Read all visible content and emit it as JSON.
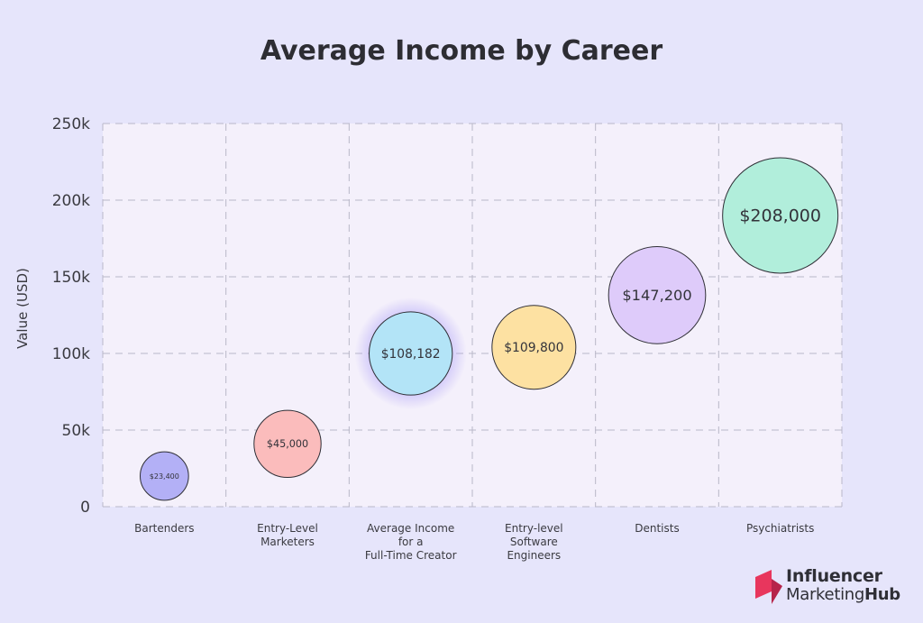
{
  "chart_data": {
    "type": "scatter",
    "title": "Average Income by Career",
    "ylabel": "Value (USD)",
    "xlabel": "",
    "ylim": [
      0,
      250000
    ],
    "yticks": [
      {
        "value": 0,
        "label": "0"
      },
      {
        "value": 50000,
        "label": "50k"
      },
      {
        "value": 100000,
        "label": "100k"
      },
      {
        "value": 150000,
        "label": "150k"
      },
      {
        "value": 200000,
        "label": "200k"
      },
      {
        "value": 250000,
        "label": "250k"
      }
    ],
    "grid": true,
    "points": [
      {
        "category": [
          "Bartenders"
        ],
        "y": 20000,
        "size": 23400,
        "label": "$23,400",
        "color": "#b3b0f6",
        "glow": false
      },
      {
        "category": [
          "Entry-Level",
          "Marketers"
        ],
        "y": 41000,
        "size": 45000,
        "label": "$45,000",
        "color": "#fbbcbc",
        "glow": false
      },
      {
        "category": [
          "Average Income",
          "for a",
          "Full-Time Creator"
        ],
        "y": 100000,
        "size": 108182,
        "label": "$108,182",
        "color": "#b3e4f7",
        "glow": true
      },
      {
        "category": [
          "Entry-level",
          "Software",
          "Engineers"
        ],
        "y": 104000,
        "size": 109800,
        "label": "$109,800",
        "color": "#fde1a2",
        "glow": false
      },
      {
        "category": [
          "Dentists"
        ],
        "y": 138000,
        "size": 147200,
        "label": "$147,200",
        "color": "#decbfa",
        "glow": false
      },
      {
        "category": [
          "Psychiatrists"
        ],
        "y": 190000,
        "size": 208000,
        "label": "$208,000",
        "color": "#b1eedb",
        "glow": false
      }
    ]
  },
  "logo": {
    "line1": "Influencer",
    "line2a": "Marketing",
    "line2b": "Hub",
    "mark_color_a": "#e8365d",
    "mark_color_b": "#b6244a"
  }
}
